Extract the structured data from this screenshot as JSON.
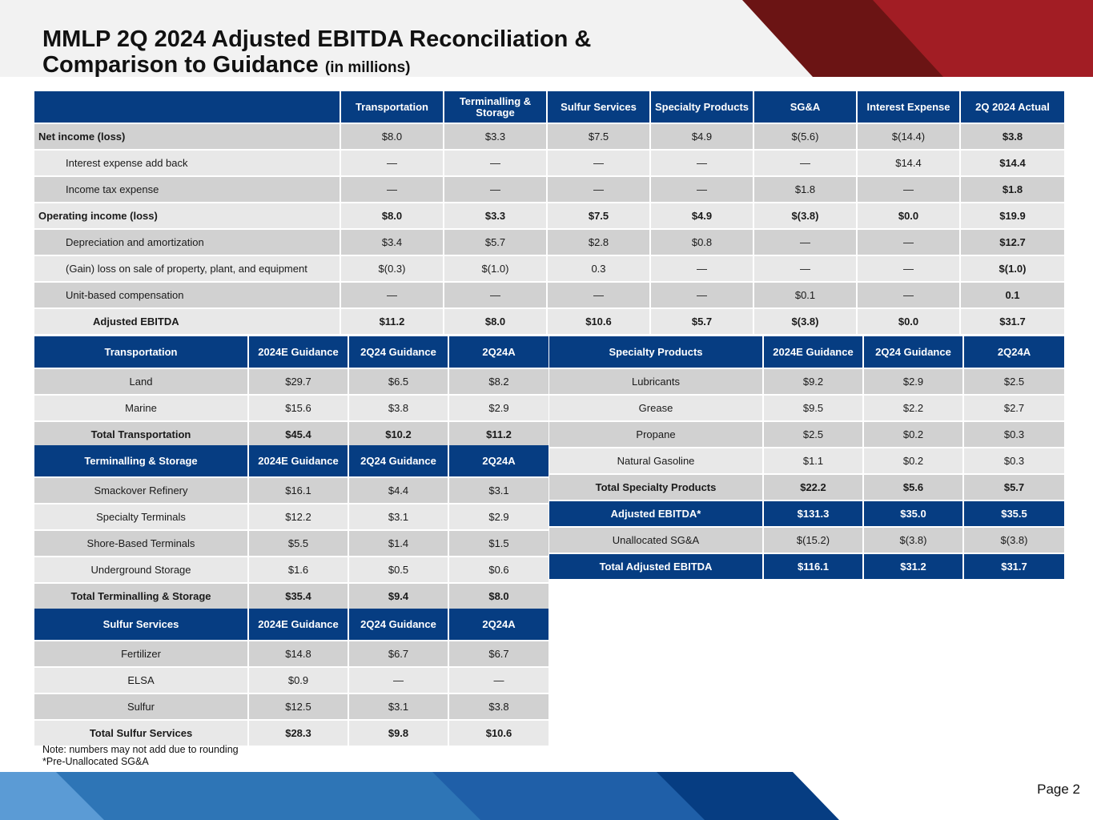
{
  "title": {
    "main_line1": "MMLP 2Q 2024 Adjusted EBITDA Reconciliation &",
    "main_line2": "Comparison to Guidance",
    "unit": "(in millions)"
  },
  "colors": {
    "navy": "#063d82",
    "red": "#a01a20",
    "dark_red": "#6b1414",
    "light_blue": "#5b9bd5"
  },
  "reconciliation": {
    "headers": [
      "",
      "Transportation",
      "Terminalling & Storage",
      "Sulfur Services",
      "Specialty Products",
      "SG&A",
      "Interest Expense",
      "2Q 2024 Actual"
    ],
    "rows": [
      {
        "label": "Net income (loss)",
        "values": [
          "$8.0",
          "$3.3",
          "$7.5",
          "$4.9",
          "$(5.6)",
          "$(14.4)",
          "$3.8"
        ]
      },
      {
        "label": "Interest expense add back",
        "values": [
          "—",
          "—",
          "—",
          "—",
          "—",
          "$14.4",
          "$14.4"
        ]
      },
      {
        "label": "Income tax expense",
        "values": [
          "—",
          "—",
          "—",
          "—",
          "$1.8",
          "—",
          "$1.8"
        ]
      },
      {
        "label": "Operating income (loss)",
        "values": [
          "$8.0",
          "$3.3",
          "$7.5",
          "$4.9",
          "$(3.8)",
          "$0.0",
          "$19.9"
        ]
      },
      {
        "label": "Depreciation and amortization",
        "values": [
          "$3.4",
          "$5.7",
          "$2.8",
          "$0.8",
          "—",
          "—",
          "$12.7"
        ]
      },
      {
        "label": "(Gain) loss on sale of property, plant, and equipment",
        "values": [
          "$(0.3)",
          "$(1.0)",
          "0.3",
          "—",
          "—",
          "—",
          "$(1.0)"
        ]
      },
      {
        "label": "Unit-based compensation",
        "values": [
          "—",
          "—",
          "—",
          "—",
          "$0.1",
          "—",
          "0.1"
        ]
      },
      {
        "label": "Adjusted EBITDA",
        "values": [
          "$11.2",
          "$8.0",
          "$10.6",
          "$5.7",
          "$(3.8)",
          "$0.0",
          "$31.7"
        ]
      }
    ]
  },
  "transportation": {
    "headers": [
      "Transportation",
      "2024E Guidance",
      "2Q24 Guidance",
      "2Q24A"
    ],
    "rows": [
      [
        "Land",
        "$29.7",
        "$6.5",
        "$8.2"
      ],
      [
        "Marine",
        "$15.6",
        "$3.8",
        "$2.9"
      ]
    ],
    "total": [
      "Total Transportation",
      "$45.4",
      "$10.2",
      "$11.2"
    ]
  },
  "terminalling": {
    "headers": [
      "Terminalling & Storage",
      "2024E Guidance",
      "2Q24 Guidance",
      "2Q24A"
    ],
    "rows": [
      [
        "Smackover Refinery",
        "$16.1",
        "$4.4",
        "$3.1"
      ],
      [
        "Specialty Terminals",
        "$12.2",
        "$3.1",
        "$2.9"
      ],
      [
        "Shore-Based Terminals",
        "$5.5",
        "$1.4",
        "$1.5"
      ],
      [
        "Underground Storage",
        "$1.6",
        "$0.5",
        "$0.6"
      ]
    ],
    "total": [
      "Total Terminalling & Storage",
      "$35.4",
      "$9.4",
      "$8.0"
    ]
  },
  "sulfur": {
    "headers": [
      "Sulfur Services",
      "2024E Guidance",
      "2Q24 Guidance",
      "2Q24A"
    ],
    "rows": [
      [
        "Fertilizer",
        "$14.8",
        "$6.7",
        "$6.7"
      ],
      [
        "ELSA",
        "$0.9",
        "—",
        "—"
      ],
      [
        "Sulfur",
        "$12.5",
        "$3.1",
        "$3.8"
      ]
    ],
    "total": [
      "Total Sulfur Services",
      "$28.3",
      "$9.8",
      "$10.6"
    ]
  },
  "specialty": {
    "headers": [
      "Specialty Products",
      "2024E Guidance",
      "2Q24 Guidance",
      "2Q24A"
    ],
    "rows": [
      [
        "Lubricants",
        "$9.2",
        "$2.9",
        "$2.5"
      ],
      [
        "Grease",
        "$9.5",
        "$2.2",
        "$2.7"
      ],
      [
        "Propane",
        "$2.5",
        "$0.2",
        "$0.3"
      ],
      [
        "Natural Gasoline",
        "$1.1",
        "$0.2",
        "$0.3"
      ]
    ],
    "total": [
      "Total Specialty Products",
      "$22.2",
      "$5.6",
      "$5.7"
    ],
    "adjusted": [
      "Adjusted EBITDA*",
      "$131.3",
      "$35.0",
      "$35.5"
    ],
    "unallocated": [
      "Unallocated SG&A",
      "$(15.2)",
      "$(3.8)",
      "$(3.8)"
    ],
    "total_adjusted": [
      "Total Adjusted EBITDA",
      "$116.1",
      "$31.2",
      "$31.7"
    ]
  },
  "notes": {
    "line1": "Note: numbers may not add due to rounding",
    "line2": "*Pre-Unallocated SG&A"
  },
  "page_label": "Page 2"
}
